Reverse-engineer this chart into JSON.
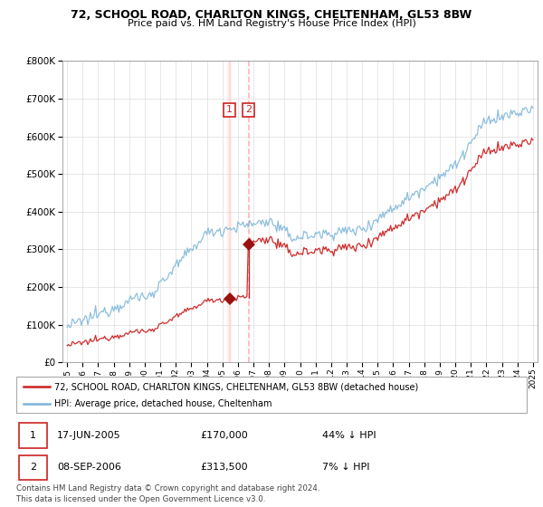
{
  "title1": "72, SCHOOL ROAD, CHARLTON KINGS, CHELTENHAM, GL53 8BW",
  "title2": "Price paid vs. HM Land Registry's House Price Index (HPI)",
  "legend_line1": "72, SCHOOL ROAD, CHARLTON KINGS, CHELTENHAM, GL53 8BW (detached house)",
  "legend_line2": "HPI: Average price, detached house, Cheltenham",
  "transaction1_date": "17-JUN-2005",
  "transaction1_price": 170000,
  "transaction1_label": "44% ↓ HPI",
  "transaction2_date": "08-SEP-2006",
  "transaction2_price": 313500,
  "transaction2_label": "7% ↓ HPI",
  "transaction1_x": 2005.46,
  "transaction2_x": 2006.69,
  "footer": "Contains HM Land Registry data © Crown copyright and database right 2024.\nThis data is licensed under the Open Government Licence v3.0.",
  "hpi_color": "#7ab4d8",
  "price_color": "#cc2222",
  "vline1_color": "#ffcccc",
  "vline2_color": "#ffaaaa",
  "marker_color": "#991111",
  "label_box_color": "#cc2222",
  "ylim_max": 800000,
  "xlim_min": 1994.7,
  "xlim_max": 2025.3,
  "background_color": "#ffffff"
}
